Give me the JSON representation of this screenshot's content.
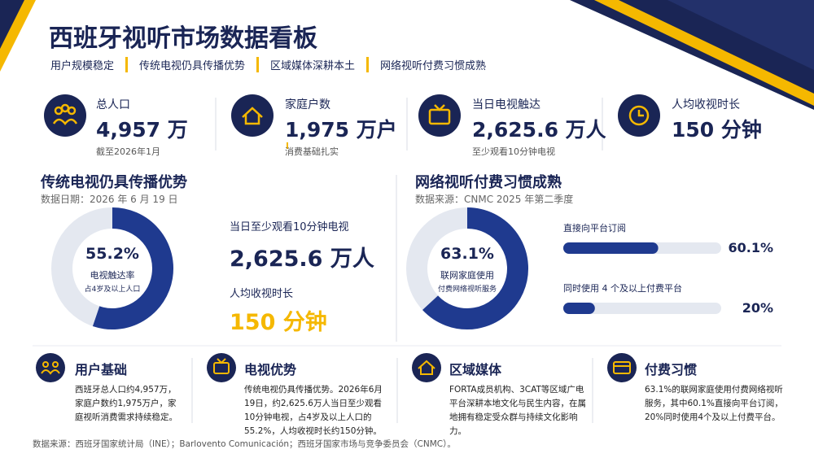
{
  "header": {
    "title": "西班牙视听市场数据看板",
    "tags": [
      "用户规模稳定",
      "传统电视仍具传播优势",
      "区域媒体深耕本土",
      "网络视听付费习惯成熟"
    ]
  },
  "stats": [
    {
      "label": "总人口",
      "value": "4,957 万",
      "note": "截至2026年1月"
    },
    {
      "label": "家庭户数",
      "value": "1,975 万户",
      "note": "消费基础扎实"
    },
    {
      "label": "当日电视触达",
      "value": "2,625.6 万人",
      "note": "至少观看10分钟电视"
    },
    {
      "label": "人均收视时长",
      "value": "150 分钟"
    }
  ],
  "sections": [
    {
      "title": "传统电视仍具传播优势",
      "subtitle": "数据日期：2026 年 6 月 19 日",
      "facts": [
        {
          "label": "当日至少观看10分钟电视",
          "value": "2,625.6 万人"
        },
        {
          "label": "人均收视时长",
          "value": "150 分钟"
        }
      ]
    },
    {
      "title": "网络视听付费习惯成熟",
      "subtitle": "数据来源：CNMC 2025 年第二季度"
    }
  ],
  "chart_data": [
    {
      "type": "donut",
      "values": [
        55.2
      ],
      "value_labels": [
        "55.2%"
      ],
      "label": "电视触达率",
      "note": "占4岁及以上人口",
      "ylim": [
        0,
        100
      ],
      "color": "#1f3a8f",
      "track_color": "#e4e8f0"
    },
    {
      "type": "donut",
      "values": [
        63.1
      ],
      "value_labels": [
        "63.1%"
      ],
      "label": "联网家庭使用",
      "note": "付费网络视听服务",
      "ylim": [
        0,
        100
      ],
      "color": "#1f3a8f",
      "track_color": "#e4e8f0"
    },
    {
      "type": "bar",
      "categories": [
        "直接向平台订阅",
        "同时使用 4 个及以上付费平台"
      ],
      "values": [
        60.1,
        20
      ],
      "value_labels": [
        "60.1%",
        "20%"
      ],
      "xlim": [
        0,
        100
      ],
      "color": "#1f3a8f",
      "track_color": "#e4e8f0"
    }
  ],
  "cards": [
    {
      "title": "用户基础",
      "text": "西班牙总人口约4,957万，家庭户数约1,975万户，家庭视听消费需求持续稳定。"
    },
    {
      "title": "电视优势",
      "text": "传统电视仍具传播优势。2026年6月19日，约2,625.6万人当日至少观看10分钟电视，占4岁及以上人口的55.2%，人均收视时长约150分钟。"
    },
    {
      "title": "区域媒体",
      "text": "FORTA成员机构、3CAT等区域广电平台深耕本地文化与民生内容，在属地拥有稳定受众群与持续文化影响力。"
    },
    {
      "title": "付费习惯",
      "text": "63.1%的联网家庭使用付费网络视听服务，其中60.1%直接向平台订阅，20%同时使用4个及以上付费平台。"
    }
  ],
  "footer": "数据来源：西班牙国家统计局（INE）；Barlovento Comunicación；西班牙国家市场与竞争委员会（CNMC）。"
}
